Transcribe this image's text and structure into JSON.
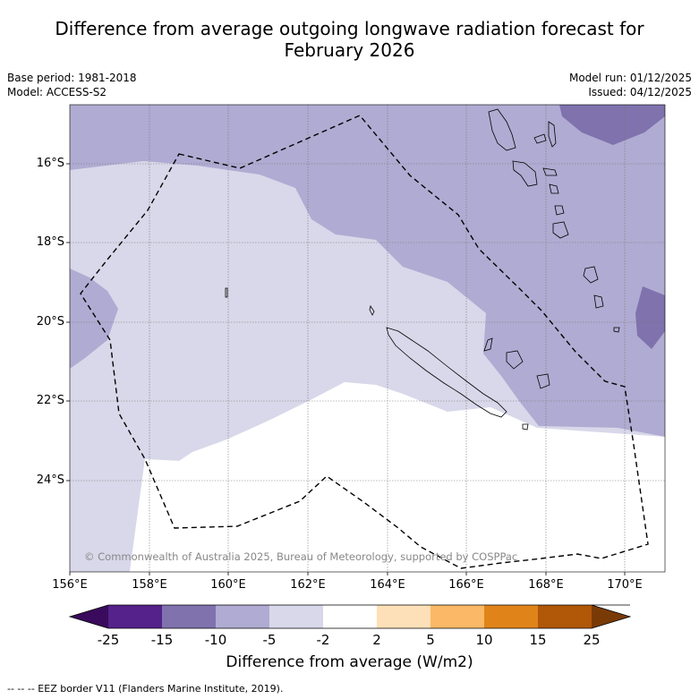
{
  "title_line1": "Difference from average outgoing longwave radiation forecast for",
  "title_line2": "February 2026",
  "base_period": "Base period: 1981-2018",
  "model": "Model: ACCESS-S2",
  "model_run": "Model run: 01/12/2025",
  "issued": "Issued: 04/12/2025",
  "copyright": "© Commonwealth of Australia 2025, Bureau of Meteorology, supported by COSPPac",
  "lat_ticks": [
    "16°S",
    "18°S",
    "20°S",
    "22°S",
    "24°S"
  ],
  "lon_ticks": [
    "156°E",
    "158°E",
    "160°E",
    "162°E",
    "164°E",
    "166°E",
    "168°E",
    "170°E"
  ],
  "colorbar": {
    "title": "Difference from average (W/m2)",
    "labels": [
      "-25",
      "-15",
      "-10",
      "-5",
      "-2",
      "2",
      "5",
      "10",
      "15",
      "25"
    ],
    "colors": {
      "lt_-25": "#3a0a5c",
      "-25_-15": "#54228a",
      "-15_-10": "#7f72ad",
      "-10_-5": "#b0abd2",
      "-5_-2": "#d8d8ea",
      "-2_2": "#ffffff",
      "2_5": "#fde0b8",
      "5_10": "#fbb866",
      "10_15": "#e08419",
      "15_25": "#b05708",
      "gt_25": "#7a3a06"
    }
  },
  "footer": "--  --  -- EEZ border V11 (Flanders Marine Institute, 2019)."
}
